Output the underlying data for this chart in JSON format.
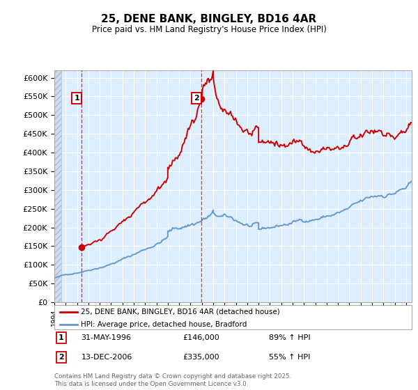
{
  "title": "25, DENE BANK, BINGLEY, BD16 4AR",
  "subtitle": "Price paid vs. HM Land Registry's House Price Index (HPI)",
  "legend_line1": "25, DENE BANK, BINGLEY, BD16 4AR (detached house)",
  "legend_line2": "HPI: Average price, detached house, Bradford",
  "sale1_date": "31-MAY-1996",
  "sale1_price_str": "£146,000",
  "sale1_hpi": "89% ↑ HPI",
  "sale2_date": "13-DEC-2006",
  "sale2_price_str": "£335,000",
  "sale2_hpi": "55% ↑ HPI",
  "sale1_x": 1996.42,
  "sale2_x": 2006.96,
  "sale1_price": 146000,
  "sale2_price": 335000,
  "red_color": "#cc0000",
  "blue_color": "#6699cc",
  "background_color": "#ddeeff",
  "ylim_min": 0,
  "ylim_max": 620000,
  "xlim_min": 1994,
  "xlim_max": 2025.5,
  "footer": "Contains HM Land Registry data © Crown copyright and database right 2025.\nThis data is licensed under the Open Government Licence v3.0.",
  "yticks": [
    0,
    50000,
    100000,
    150000,
    200000,
    250000,
    300000,
    350000,
    400000,
    450000,
    500000,
    550000,
    600000
  ],
  "ytick_labels": [
    "£0",
    "£50K",
    "£100K",
    "£150K",
    "£200K",
    "£250K",
    "£300K",
    "£350K",
    "£400K",
    "£450K",
    "£500K",
    "£550K",
    "£600K"
  ]
}
